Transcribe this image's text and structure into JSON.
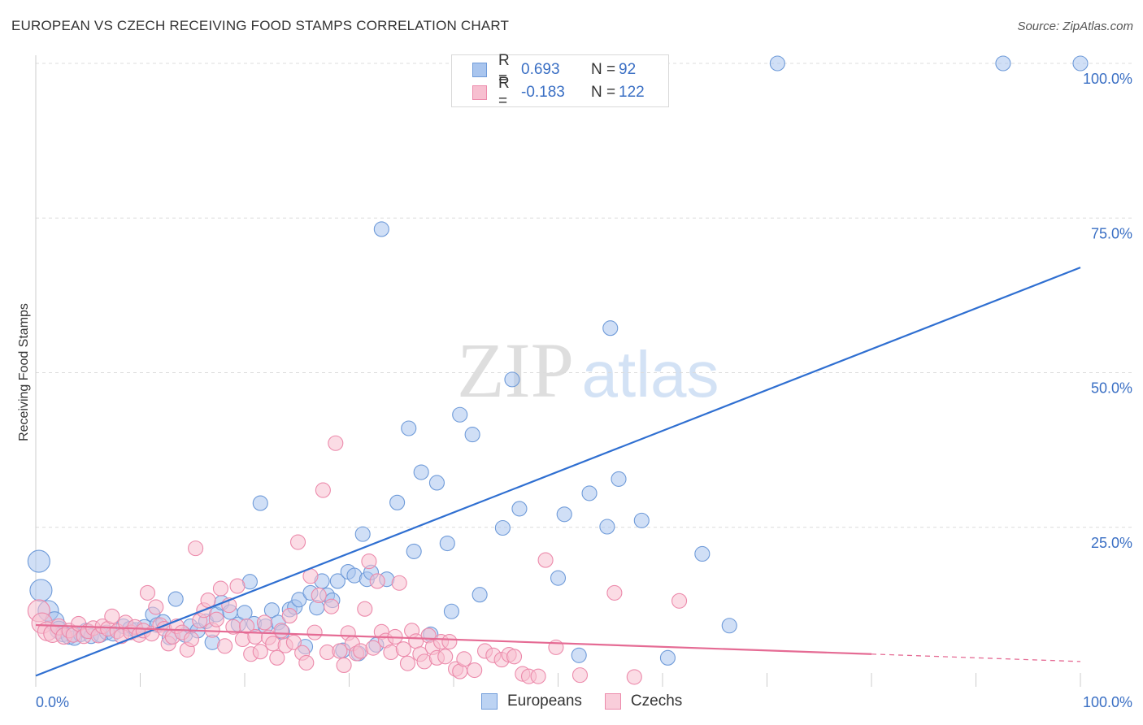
{
  "title": "EUROPEAN VS CZECH RECEIVING FOOD STAMPS CORRELATION CHART",
  "source": "Source: ZipAtlas.com",
  "watermark": {
    "zip": "ZIP",
    "atlas": "atlas"
  },
  "legend": {
    "rows": [
      {
        "r_label": "R =",
        "r_value": "0.693",
        "n_label": "N =",
        "n_value": "92",
        "color": "#a9c5ee",
        "border": "#6f9bd9"
      },
      {
        "r_label": "R =",
        "r_value": "-0.183",
        "n_label": "N =",
        "n_value": "122",
        "color": "#f7bfd0",
        "border": "#ec8aab"
      }
    ]
  },
  "bottom_legend": [
    {
      "label": "Europeans",
      "color": "#bcd3f3",
      "border": "#6f9bd9"
    },
    {
      "label": "Czechs",
      "color": "#f9cdda",
      "border": "#ec8aab"
    }
  ],
  "chart_data": {
    "type": "scatter",
    "title": "EUROPEAN VS CZECH RECEIVING FOOD STAMPS CORRELATION CHART",
    "xlabel": "",
    "ylabel": "Receiving Food Stamps",
    "xlim": [
      0,
      100
    ],
    "ylim": [
      0,
      100
    ],
    "x_tick_labels": [
      {
        "value": 0,
        "label": "0.0%"
      },
      {
        "value": 100,
        "label": "100.0%"
      }
    ],
    "y_tick_labels": [
      {
        "value": 25,
        "label": "25.0%"
      },
      {
        "value": 50,
        "label": "50.0%"
      },
      {
        "value": 75,
        "label": "75.0%"
      },
      {
        "value": 100,
        "label": "100.0%"
      }
    ],
    "grid": true,
    "legend_position": "top-center",
    "series": [
      {
        "name": "Europeans",
        "color": "#a9c5ee",
        "stroke": "#6f9bd9",
        "trend": {
          "x": [
            0,
            100
          ],
          "y": [
            1.0,
            67.0
          ],
          "color": "#2f6fd1"
        },
        "points": [
          [
            0.3,
            19.5,
            1.5
          ],
          [
            0.5,
            14.8,
            1.5
          ],
          [
            1.2,
            11.5,
            1.4
          ],
          [
            1.8,
            9.8,
            1.3
          ],
          [
            2.2,
            8.4,
            1.2
          ],
          [
            2.6,
            7.8,
            1.1
          ],
          [
            3.2,
            7.4,
            1.1
          ],
          [
            3.7,
            7.1,
            1
          ],
          [
            4.3,
            7.7,
            1
          ],
          [
            4.8,
            8.3,
            1
          ],
          [
            5.3,
            7.4,
            1
          ],
          [
            6.2,
            7.6,
            1
          ],
          [
            6.8,
            8.0,
            1
          ],
          [
            7.4,
            7.8,
            1
          ],
          [
            8.4,
            9.0,
            1
          ],
          [
            9.0,
            8.6,
            1
          ],
          [
            9.6,
            8.4,
            1
          ],
          [
            10.4,
            8.9,
            1
          ],
          [
            11.2,
            10.9,
            1
          ],
          [
            11.6,
            9.2,
            1
          ],
          [
            12.2,
            9.7,
            1
          ],
          [
            12.8,
            7.2,
            1
          ],
          [
            13.4,
            13.4,
            1
          ],
          [
            14.3,
            7.6,
            1
          ],
          [
            14.8,
            9.0,
            1
          ],
          [
            15.5,
            8.3,
            1
          ],
          [
            16.3,
            9.8,
            1
          ],
          [
            16.9,
            6.4,
            1
          ],
          [
            17.3,
            10.9,
            1
          ],
          [
            17.8,
            12.8,
            1
          ],
          [
            18.6,
            11.3,
            1
          ],
          [
            19.4,
            9.3,
            1
          ],
          [
            20.0,
            11.2,
            1
          ],
          [
            20.5,
            16.2,
            1
          ],
          [
            20.9,
            9.4,
            1
          ],
          [
            21.5,
            28.9,
            1
          ],
          [
            22.0,
            9.0,
            1
          ],
          [
            22.6,
            11.6,
            1
          ],
          [
            23.2,
            9.6,
            1
          ],
          [
            23.6,
            8.1,
            1
          ],
          [
            24.3,
            11.7,
            1
          ],
          [
            24.8,
            12.1,
            1
          ],
          [
            25.2,
            13.3,
            1
          ],
          [
            25.8,
            5.7,
            1
          ],
          [
            26.3,
            14.4,
            1
          ],
          [
            26.9,
            12.0,
            1
          ],
          [
            27.4,
            16.3,
            1
          ],
          [
            27.9,
            14.0,
            1
          ],
          [
            28.4,
            13.2,
            1
          ],
          [
            28.9,
            16.3,
            1
          ],
          [
            29.4,
            5.1,
            1
          ],
          [
            29.9,
            17.8,
            1
          ],
          [
            30.5,
            17.2,
            1
          ],
          [
            30.9,
            4.6,
            1
          ],
          [
            31.3,
            23.9,
            1
          ],
          [
            31.7,
            16.6,
            1
          ],
          [
            32.1,
            17.7,
            1
          ],
          [
            32.6,
            6.0,
            1
          ],
          [
            33.1,
            73.2,
            1
          ],
          [
            33.6,
            16.6,
            1
          ],
          [
            34.6,
            29.0,
            1
          ],
          [
            35.7,
            41.0,
            1
          ],
          [
            36.2,
            21.1,
            1
          ],
          [
            36.9,
            33.9,
            1
          ],
          [
            37.8,
            7.7,
            1
          ],
          [
            38.4,
            32.2,
            1
          ],
          [
            39.4,
            22.4,
            1
          ],
          [
            39.8,
            11.4,
            1
          ],
          [
            40.6,
            43.2,
            1
          ],
          [
            41.8,
            40.0,
            1
          ],
          [
            42.5,
            14.1,
            1
          ],
          [
            44.7,
            24.9,
            1
          ],
          [
            45.6,
            48.9,
            1
          ],
          [
            46.3,
            28.0,
            1
          ],
          [
            50.0,
            16.8,
            1
          ],
          [
            50.6,
            27.1,
            1
          ],
          [
            52.0,
            4.3,
            1
          ],
          [
            53.0,
            30.5,
            1
          ],
          [
            54.7,
            25.1,
            1
          ],
          [
            55.0,
            57.2,
            1
          ],
          [
            55.8,
            32.8,
            1
          ],
          [
            58.0,
            26.1,
            1
          ],
          [
            60.5,
            3.9,
            1
          ],
          [
            63.8,
            20.7,
            1
          ],
          [
            66.4,
            9.1,
            1
          ],
          [
            71.0,
            100,
            1
          ],
          [
            92.6,
            100,
            1
          ],
          [
            100,
            100,
            1
          ]
        ]
      },
      {
        "name": "Czechs",
        "color": "#f7bfd0",
        "stroke": "#ec8aab",
        "trend": {
          "x": [
            0,
            80,
            100
          ],
          "y": [
            9.2,
            4.5,
            3.3
          ],
          "color": "#e56b94"
        },
        "points": [
          [
            0.3,
            11.5,
            1.5
          ],
          [
            0.6,
            9.5,
            1.4
          ],
          [
            1.1,
            8.2,
            1.3
          ],
          [
            1.6,
            7.8,
            1.2
          ],
          [
            2.2,
            8.9,
            1.1
          ],
          [
            2.7,
            7.4,
            1.1
          ],
          [
            3.2,
            8.3,
            1
          ],
          [
            3.6,
            7.6,
            1
          ],
          [
            4.1,
            9.4,
            1
          ],
          [
            4.6,
            7.4,
            1
          ],
          [
            5.0,
            8.2,
            1
          ],
          [
            5.5,
            8.7,
            1
          ],
          [
            6.0,
            7.5,
            1
          ],
          [
            6.4,
            9.0,
            1
          ],
          [
            6.9,
            8.6,
            1
          ],
          [
            7.3,
            10.6,
            1
          ],
          [
            7.8,
            8.2,
            1
          ],
          [
            8.2,
            7.4,
            1
          ],
          [
            8.6,
            9.6,
            1
          ],
          [
            9.1,
            8.0,
            1
          ],
          [
            9.5,
            8.9,
            1
          ],
          [
            9.9,
            7.6,
            1
          ],
          [
            10.3,
            8.3,
            1
          ],
          [
            10.7,
            14.4,
            1
          ],
          [
            11.1,
            7.8,
            1
          ],
          [
            11.5,
            12.1,
            1
          ],
          [
            11.9,
            9.2,
            1
          ],
          [
            12.3,
            8.6,
            1
          ],
          [
            12.7,
            6.2,
            1
          ],
          [
            13.1,
            7.3,
            1
          ],
          [
            13.5,
            9.0,
            1
          ],
          [
            14.0,
            8.0,
            1
          ],
          [
            14.5,
            5.2,
            1
          ],
          [
            14.9,
            6.9,
            1
          ],
          [
            15.3,
            21.6,
            1
          ],
          [
            15.7,
            9.9,
            1
          ],
          [
            16.1,
            11.6,
            1
          ],
          [
            16.5,
            13.2,
            1
          ],
          [
            16.9,
            8.4,
            1
          ],
          [
            17.3,
            10.1,
            1
          ],
          [
            17.7,
            15.1,
            1
          ],
          [
            18.1,
            5.8,
            1
          ],
          [
            18.5,
            12.4,
            1
          ],
          [
            18.9,
            8.9,
            1
          ],
          [
            19.3,
            15.5,
            1
          ],
          [
            19.8,
            6.9,
            1
          ],
          [
            20.2,
            9.0,
            1
          ],
          [
            20.6,
            4.5,
            1
          ],
          [
            21.0,
            7.3,
            1
          ],
          [
            21.5,
            4.9,
            1
          ],
          [
            21.9,
            9.6,
            1
          ],
          [
            22.3,
            7.2,
            1
          ],
          [
            22.7,
            6.2,
            1
          ],
          [
            23.1,
            3.9,
            1
          ],
          [
            23.5,
            8.3,
            1
          ],
          [
            23.9,
            5.9,
            1
          ],
          [
            24.3,
            10.7,
            1
          ],
          [
            24.7,
            6.4,
            1
          ],
          [
            25.1,
            22.6,
            1
          ],
          [
            25.5,
            4.7,
            1
          ],
          [
            25.9,
            3.1,
            1
          ],
          [
            26.3,
            17.1,
            1
          ],
          [
            26.7,
            8.0,
            1
          ],
          [
            27.1,
            14.0,
            1
          ],
          [
            27.5,
            31.0,
            1
          ],
          [
            27.9,
            4.8,
            1
          ],
          [
            28.3,
            12.2,
            1
          ],
          [
            28.7,
            38.6,
            1
          ],
          [
            29.1,
            5.0,
            1
          ],
          [
            29.5,
            2.7,
            1
          ],
          [
            29.9,
            7.9,
            1
          ],
          [
            30.3,
            6.2,
            1
          ],
          [
            30.7,
            4.6,
            1
          ],
          [
            31.1,
            5.0,
            1
          ],
          [
            31.5,
            11.8,
            1
          ],
          [
            31.9,
            19.5,
            1
          ],
          [
            32.3,
            5.5,
            1
          ],
          [
            32.7,
            16.3,
            1
          ],
          [
            33.1,
            8.1,
            1
          ],
          [
            33.5,
            6.7,
            1
          ],
          [
            34.0,
            4.8,
            1
          ],
          [
            34.4,
            7.3,
            1
          ],
          [
            34.8,
            16.0,
            1
          ],
          [
            35.2,
            5.3,
            1
          ],
          [
            35.6,
            3.0,
            1
          ],
          [
            36.0,
            8.3,
            1
          ],
          [
            36.4,
            6.6,
            1
          ],
          [
            36.8,
            4.5,
            1
          ],
          [
            37.2,
            3.3,
            1
          ],
          [
            37.6,
            7.5,
            1
          ],
          [
            38.0,
            5.6,
            1
          ],
          [
            38.4,
            3.9,
            1
          ],
          [
            38.8,
            6.5,
            1
          ],
          [
            39.2,
            4.1,
            1
          ],
          [
            39.6,
            6.5,
            1
          ],
          [
            40.2,
            2.1,
            1
          ],
          [
            40.6,
            1.7,
            1
          ],
          [
            41.0,
            3.7,
            1
          ],
          [
            42.0,
            1.9,
            1
          ],
          [
            43.0,
            5.0,
            1
          ],
          [
            43.8,
            4.3,
            1
          ],
          [
            44.6,
            3.6,
            1
          ],
          [
            45.3,
            4.4,
            1
          ],
          [
            45.8,
            4.1,
            1
          ],
          [
            46.6,
            1.3,
            1
          ],
          [
            47.2,
            0.9,
            1
          ],
          [
            48.1,
            0.9,
            1
          ],
          [
            48.8,
            19.7,
            1
          ],
          [
            49.8,
            5.6,
            1
          ],
          [
            52.1,
            1.1,
            1
          ],
          [
            55.4,
            14.4,
            1
          ],
          [
            57.3,
            0.8,
            1
          ],
          [
            61.6,
            13.1,
            1
          ]
        ]
      }
    ]
  }
}
